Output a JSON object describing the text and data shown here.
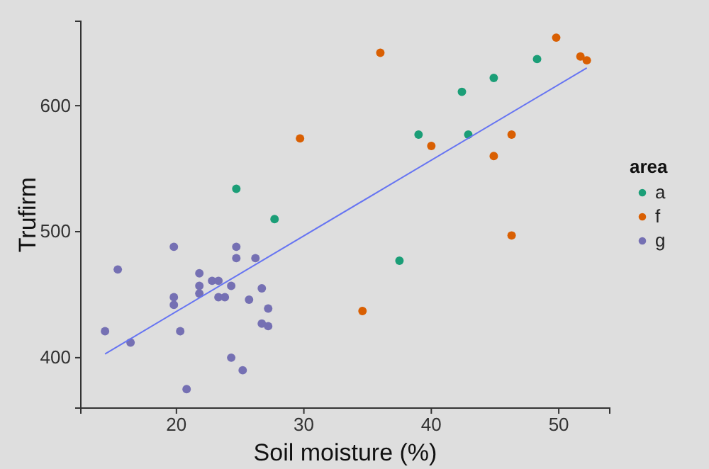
{
  "chart_data": {
    "type": "scatter",
    "xlabel": "Soil moisture (%)",
    "ylabel": "Trufirm",
    "legend_title": "area",
    "legend": "right",
    "grid": false,
    "marker": "circle",
    "xlim": [
      12.5,
      54
    ],
    "ylim": [
      360,
      667
    ],
    "xticks": [
      20,
      30,
      40,
      50
    ],
    "yticks": [
      400,
      500,
      600
    ],
    "series": [
      {
        "name": "a",
        "color": "#1b9e77",
        "x": [
          24.7,
          27.7,
          37.5,
          39.0,
          42.4,
          42.9,
          44.9,
          48.3
        ],
        "values": [
          534,
          510,
          477,
          577,
          611,
          577,
          622,
          637
        ]
      },
      {
        "name": "f",
        "color": "#d95f02",
        "x": [
          29.7,
          34.6,
          36.0,
          40.0,
          44.9,
          46.3,
          46.3,
          49.8,
          51.7,
          52.2
        ],
        "values": [
          574,
          437,
          642,
          568,
          560,
          577,
          497,
          654,
          639,
          636
        ]
      },
      {
        "name": "g",
        "color": "#7570b3",
        "x": [
          14.4,
          15.4,
          16.4,
          19.8,
          19.8,
          19.8,
          20.3,
          20.8,
          21.8,
          21.8,
          21.8,
          22.8,
          23.3,
          23.3,
          23.8,
          24.3,
          24.3,
          24.7,
          24.7,
          25.2,
          25.7,
          26.2,
          26.7,
          26.7,
          27.2,
          27.2
        ],
        "values": [
          421,
          470,
          412,
          488,
          448,
          442,
          421,
          375,
          467,
          457,
          451,
          461,
          461,
          448,
          448,
          457,
          400,
          488,
          479,
          390,
          446,
          479,
          455,
          427,
          439,
          425
        ]
      },
      {
        "type": "line",
        "color": "#6674f2",
        "marker": "none",
        "x": [
          14.4,
          52.2
        ],
        "values": [
          403,
          630
        ]
      }
    ]
  }
}
